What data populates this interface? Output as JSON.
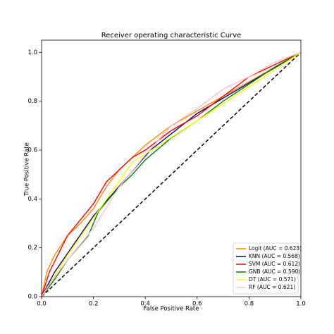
{
  "chart_data": {
    "type": "line",
    "title": "Receiver operating characteristic Curve",
    "x_label": "False Positive Rate",
    "y_label": "True Positive Rate",
    "xlim": [
      0,
      1
    ],
    "ylim": [
      0,
      1.05
    ],
    "xticks": [
      {
        "value": 0,
        "label": "0.0"
      },
      {
        "value": 0.2,
        "label": "0.2"
      },
      {
        "value": 0.4,
        "label": "0.4"
      },
      {
        "value": 0.6,
        "label": "0.6"
      },
      {
        "value": 0.8,
        "label": "0.8"
      },
      {
        "value": 1,
        "label": "1.0"
      }
    ],
    "yticks": [
      {
        "value": 0,
        "label": "0.0"
      },
      {
        "value": 0.2,
        "label": "0.2"
      },
      {
        "value": 0.4,
        "label": "0.4"
      },
      {
        "value": 0.6,
        "label": "0.6"
      },
      {
        "value": 0.8,
        "label": "0.8"
      },
      {
        "value": 1,
        "label": "1.0"
      }
    ],
    "legend": "lower right",
    "series": [
      {
        "name": "Logit (AUC = 0.623)",
        "color": "#ff8c00",
        "x": [
          0,
          0.02,
          0.05,
          0.1,
          0.15,
          0.2,
          0.25,
          0.3,
          0.35,
          0.4,
          0.5,
          0.6,
          0.7,
          0.8,
          0.9,
          1
        ],
        "values": [
          0,
          0.1,
          0.17,
          0.25,
          0.3,
          0.36,
          0.45,
          0.52,
          0.57,
          0.62,
          0.7,
          0.76,
          0.82,
          0.88,
          0.94,
          1
        ]
      },
      {
        "name": "KNN (AUC = 0.568)",
        "color": "#000080",
        "x": [
          0,
          0.05,
          0.2,
          0.42,
          0.6,
          1
        ],
        "values": [
          0,
          0.1,
          0.33,
          0.6,
          0.75,
          1
        ]
      },
      {
        "name": "SVM (AUC = 0.612)",
        "color": "#ff0000",
        "x": [
          0,
          0.03,
          0.1,
          0.2,
          0.25,
          0.3,
          0.35,
          0.4,
          0.5,
          0.6,
          0.7,
          0.8,
          0.9,
          1
        ],
        "values": [
          0,
          0.1,
          0.25,
          0.38,
          0.47,
          0.52,
          0.57,
          0.6,
          0.68,
          0.74,
          0.82,
          0.9,
          0.95,
          1
        ]
      },
      {
        "name": "GNB (AUC = 0.590)",
        "color": "#008000",
        "x": [
          0,
          0.05,
          0.1,
          0.18,
          0.22,
          0.3,
          0.35,
          0.4,
          0.5,
          0.6,
          0.7,
          0.8,
          0.9,
          1
        ],
        "values": [
          0,
          0.07,
          0.15,
          0.25,
          0.35,
          0.45,
          0.5,
          0.56,
          0.65,
          0.72,
          0.8,
          0.87,
          0.94,
          1
        ]
      },
      {
        "name": "DT (AUC = 0.571)",
        "color": "#ffff00",
        "x": [
          0,
          0.1,
          0.35,
          0.6,
          1
        ],
        "values": [
          0,
          0.17,
          0.55,
          0.72,
          1
        ]
      },
      {
        "name": "RF (AUC = 0.621)",
        "color": "#ffc0cb",
        "x": [
          0,
          0.03,
          0.1,
          0.2,
          0.3,
          0.4,
          0.5,
          0.6,
          0.7,
          0.8,
          0.9,
          1
        ],
        "values": [
          0,
          0.05,
          0.15,
          0.28,
          0.45,
          0.58,
          0.7,
          0.77,
          0.85,
          0.9,
          0.96,
          1
        ]
      }
    ]
  }
}
